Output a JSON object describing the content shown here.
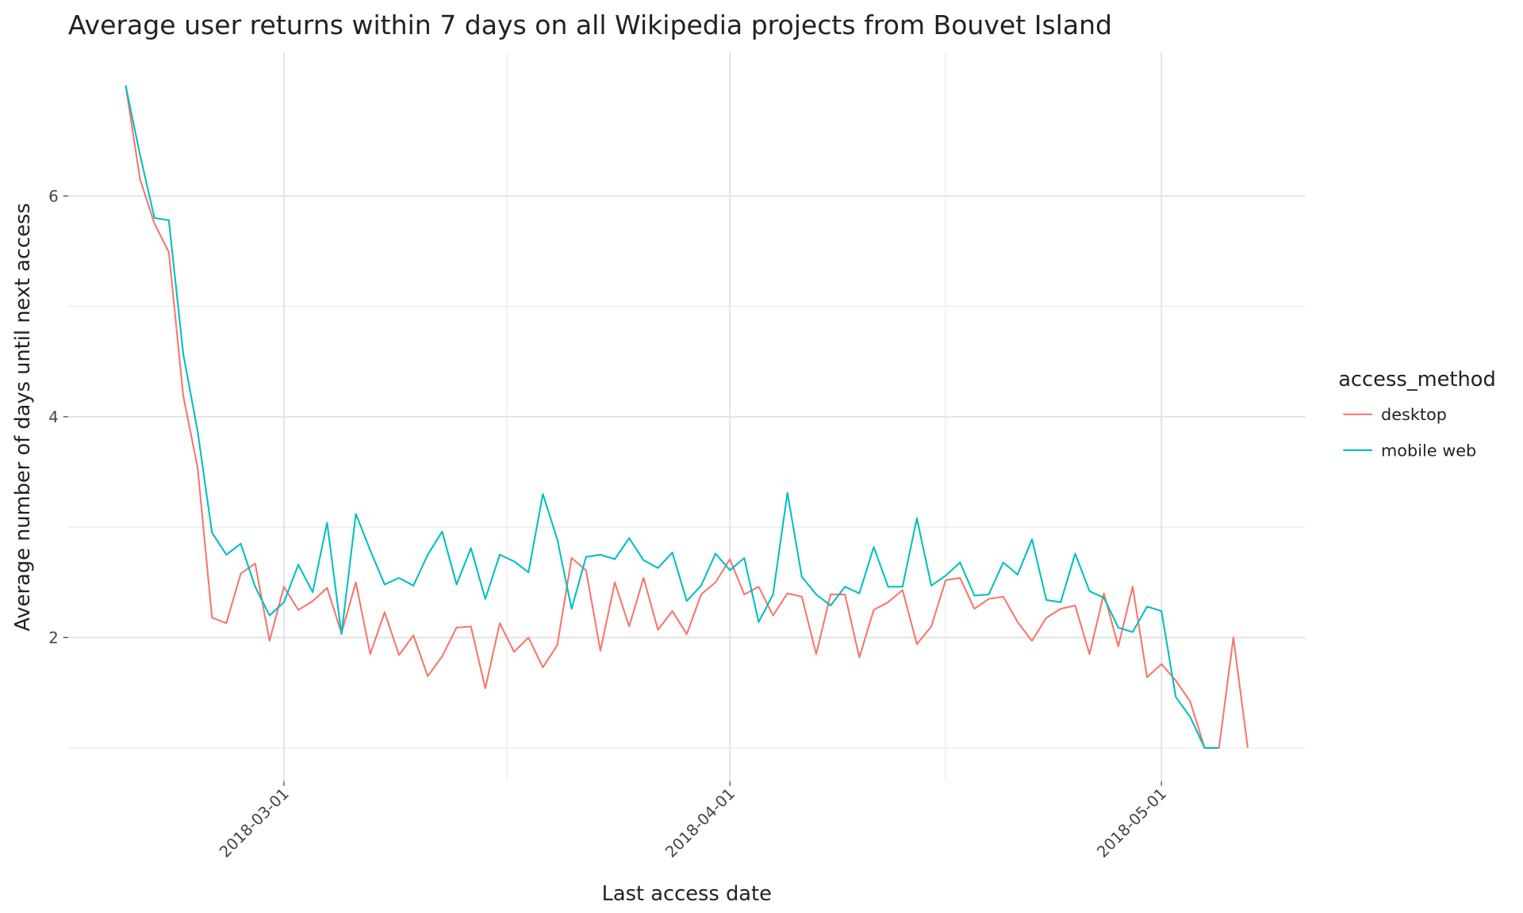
{
  "chart_data": {
    "type": "line",
    "title": "Average user returns within 7 days on all Wikipedia projects from Bouvet Island",
    "x_label": "Last access date",
    "y_label": "Average number of days until next access",
    "legend_title": "access_method",
    "legend_position": "right",
    "grid": true,
    "x": [
      "2018-02-18",
      "2018-02-19",
      "2018-02-20",
      "2018-02-21",
      "2018-02-22",
      "2018-02-23",
      "2018-02-24",
      "2018-02-25",
      "2018-02-26",
      "2018-02-27",
      "2018-02-28",
      "2018-03-01",
      "2018-03-02",
      "2018-03-03",
      "2018-03-04",
      "2018-03-05",
      "2018-03-06",
      "2018-03-07",
      "2018-03-08",
      "2018-03-09",
      "2018-03-10",
      "2018-03-11",
      "2018-03-12",
      "2018-03-13",
      "2018-03-14",
      "2018-03-15",
      "2018-03-16",
      "2018-03-17",
      "2018-03-18",
      "2018-03-19",
      "2018-03-20",
      "2018-03-21",
      "2018-03-22",
      "2018-03-23",
      "2018-03-24",
      "2018-03-25",
      "2018-03-26",
      "2018-03-27",
      "2018-03-28",
      "2018-03-29",
      "2018-03-30",
      "2018-03-31",
      "2018-04-01",
      "2018-04-02",
      "2018-04-03",
      "2018-04-04",
      "2018-04-05",
      "2018-04-06",
      "2018-04-07",
      "2018-04-08",
      "2018-04-09",
      "2018-04-10",
      "2018-04-11",
      "2018-04-12",
      "2018-04-13",
      "2018-04-14",
      "2018-04-15",
      "2018-04-16",
      "2018-04-17",
      "2018-04-18",
      "2018-04-19",
      "2018-04-20",
      "2018-04-21",
      "2018-04-22",
      "2018-04-23",
      "2018-04-24",
      "2018-04-25",
      "2018-04-26",
      "2018-04-27",
      "2018-04-28",
      "2018-04-29",
      "2018-04-30",
      "2018-05-01",
      "2018-05-02",
      "2018-05-03",
      "2018-05-04",
      "2018-05-05",
      "2018-05-06",
      "2018-05-07"
    ],
    "series": [
      {
        "name": "desktop",
        "color": "#f8766d",
        "values": [
          7.0,
          6.15,
          5.75,
          5.49,
          4.19,
          3.54,
          2.18,
          2.13,
          2.58,
          2.67,
          1.97,
          2.46,
          2.25,
          2.33,
          2.45,
          2.04,
          2.5,
          1.85,
          2.23,
          1.84,
          2.02,
          1.65,
          1.83,
          2.09,
          2.1,
          1.54,
          2.13,
          1.87,
          2.0,
          1.73,
          1.93,
          2.72,
          2.61,
          1.88,
          2.5,
          2.1,
          2.54,
          2.07,
          2.24,
          2.03,
          2.39,
          2.5,
          2.71,
          2.39,
          2.46,
          2.2,
          2.4,
          2.37,
          1.85,
          2.39,
          2.39,
          1.82,
          2.25,
          2.32,
          2.43,
          1.94,
          2.1,
          2.52,
          2.54,
          2.26,
          2.35,
          2.37,
          2.14,
          1.97,
          2.18,
          2.26,
          2.29,
          1.85,
          2.4,
          1.92,
          2.46,
          1.64,
          1.76,
          1.61,
          1.42,
          1.0,
          1.0,
          2.0,
          1.0
        ]
      },
      {
        "name": "mobile web",
        "color": "#00bfc4",
        "values": [
          7.0,
          6.37,
          5.8,
          5.78,
          4.57,
          3.87,
          2.95,
          2.75,
          2.85,
          2.46,
          2.2,
          2.32,
          2.66,
          2.41,
          3.04,
          2.03,
          3.12,
          2.79,
          2.48,
          2.54,
          2.47,
          2.75,
          2.96,
          2.48,
          2.81,
          2.35,
          2.75,
          2.69,
          2.59,
          3.3,
          2.89,
          2.26,
          2.73,
          2.75,
          2.71,
          2.9,
          2.7,
          2.63,
          2.77,
          2.33,
          2.47,
          2.76,
          2.61,
          2.72,
          2.14,
          2.39,
          3.31,
          2.55,
          2.39,
          2.29,
          2.46,
          2.4,
          2.82,
          2.46,
          2.46,
          3.08,
          2.47,
          2.56,
          2.68,
          2.38,
          2.39,
          2.68,
          2.57,
          2.89,
          2.34,
          2.32,
          2.76,
          2.42,
          2.36,
          2.09,
          2.05,
          2.28,
          2.24,
          1.46,
          1.28,
          1.0,
          1.0,
          null,
          null
        ]
      }
    ],
    "xlim": [
      "2018-02-14",
      "2018-05-11"
    ],
    "xticks": [
      "2018-03-01",
      "2018-04-01",
      "2018-05-01"
    ],
    "ylim": [
      0.7,
      7.3
    ],
    "yticks": [
      2,
      4,
      6
    ]
  }
}
